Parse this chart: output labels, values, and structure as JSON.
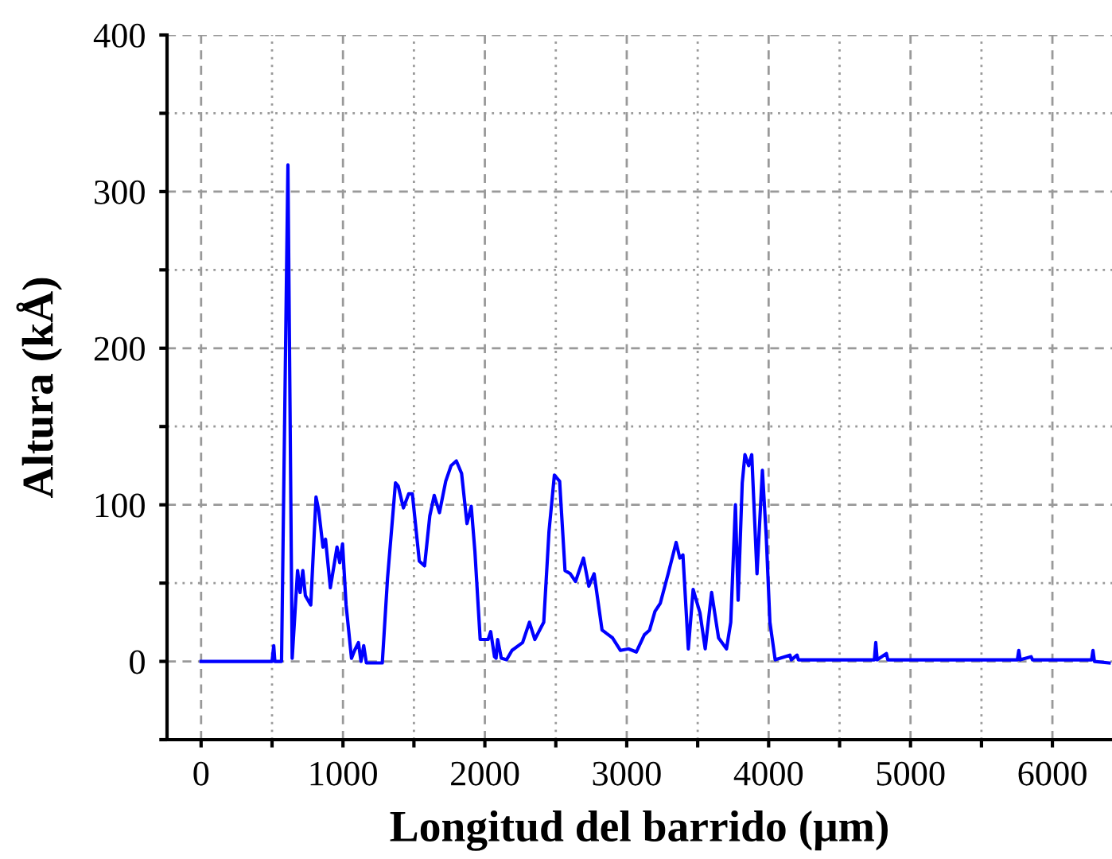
{
  "chart_data": {
    "type": "line",
    "xlabel": "Longitud del barrido (μm)",
    "ylabel": "Altura (kÅ)",
    "xlim": [
      -240,
      6420
    ],
    "ylim": [
      -50,
      400
    ],
    "xticks": [
      0,
      {
        "value": 500,
        "label": null
      },
      1000,
      {
        "value": 1500,
        "label": null
      },
      2000,
      {
        "value": 2500,
        "label": null
      },
      3000,
      {
        "value": 3500,
        "label": null
      },
      4000,
      {
        "value": 4500,
        "label": null
      },
      5000,
      {
        "value": 5500,
        "label": null
      },
      6000
    ],
    "yticks": [
      {
        "value": -50,
        "label": null
      },
      0,
      {
        "value": 50,
        "label": null
      },
      100,
      {
        "value": 150,
        "label": null
      },
      200,
      {
        "value": 250,
        "label": null
      },
      300,
      {
        "value": 350,
        "label": null
      },
      400
    ],
    "grid": true,
    "legend": false,
    "marker": "none",
    "line_style": "solid",
    "series": [
      {
        "color": "#0000ff",
        "x": [
          0,
          300,
          500,
          512,
          520,
          567,
          612,
          642,
          680,
          698,
          717,
          735,
          773,
          810,
          828,
          859,
          877,
          911,
          958,
          977,
          997,
          1022,
          1060,
          1082,
          1109,
          1127,
          1146,
          1165,
          1277,
          1314,
          1370,
          1389,
          1426,
          1463,
          1489,
          1538,
          1575,
          1612,
          1643,
          1680,
          1724,
          1762,
          1799,
          1836,
          1874,
          1904,
          1930,
          1967,
          2023,
          2041,
          2068,
          2079,
          2090,
          2116,
          2153,
          2191,
          2266,
          2314,
          2352,
          2415,
          2452,
          2490,
          2527,
          2565,
          2602,
          2639,
          2695,
          2733,
          2770,
          2826,
          2900,
          2956,
          3012,
          3068,
          3124,
          3161,
          3199,
          3236,
          3292,
          3348,
          3374,
          3396,
          3434,
          3468,
          3516,
          3553,
          3598,
          3647,
          3703,
          3733,
          3766,
          3785,
          3814,
          3833,
          3859,
          3881,
          3918,
          3956,
          3983,
          4009,
          4046,
          4150,
          4160,
          4200,
          4210,
          4400,
          4745,
          4755,
          4765,
          4830,
          4840,
          5000,
          5753,
          5763,
          5773,
          5850,
          5860,
          6276,
          6286,
          6296,
          6400
        ],
        "values": [
          0,
          0,
          0,
          10,
          0,
          0,
          317,
          2,
          58,
          44,
          58,
          42,
          36,
          105,
          97,
          73,
          78,
          47,
          73,
          63,
          75,
          36,
          2,
          7,
          12,
          0,
          10,
          -1,
          -1,
          53,
          114,
          112,
          98,
          107,
          107,
          64,
          61,
          93,
          106,
          95,
          115,
          125,
          128,
          120,
          88,
          99,
          70,
          14,
          14,
          19,
          3,
          2,
          14,
          2,
          1,
          7,
          12,
          25,
          14,
          25,
          83,
          119,
          115,
          58,
          56,
          51,
          66,
          48,
          56,
          20,
          15,
          7,
          8,
          6,
          17,
          20,
          32,
          37,
          56,
          76,
          66,
          68,
          8,
          46,
          31,
          8,
          44,
          15,
          8,
          25,
          100,
          39,
          114,
          132,
          125,
          132,
          56,
          122,
          80,
          25,
          1,
          4,
          1,
          4,
          1,
          1,
          1,
          12,
          1,
          5,
          1,
          1,
          1,
          7,
          1,
          3,
          1,
          1,
          7,
          0,
          -1
        ]
      }
    ]
  }
}
